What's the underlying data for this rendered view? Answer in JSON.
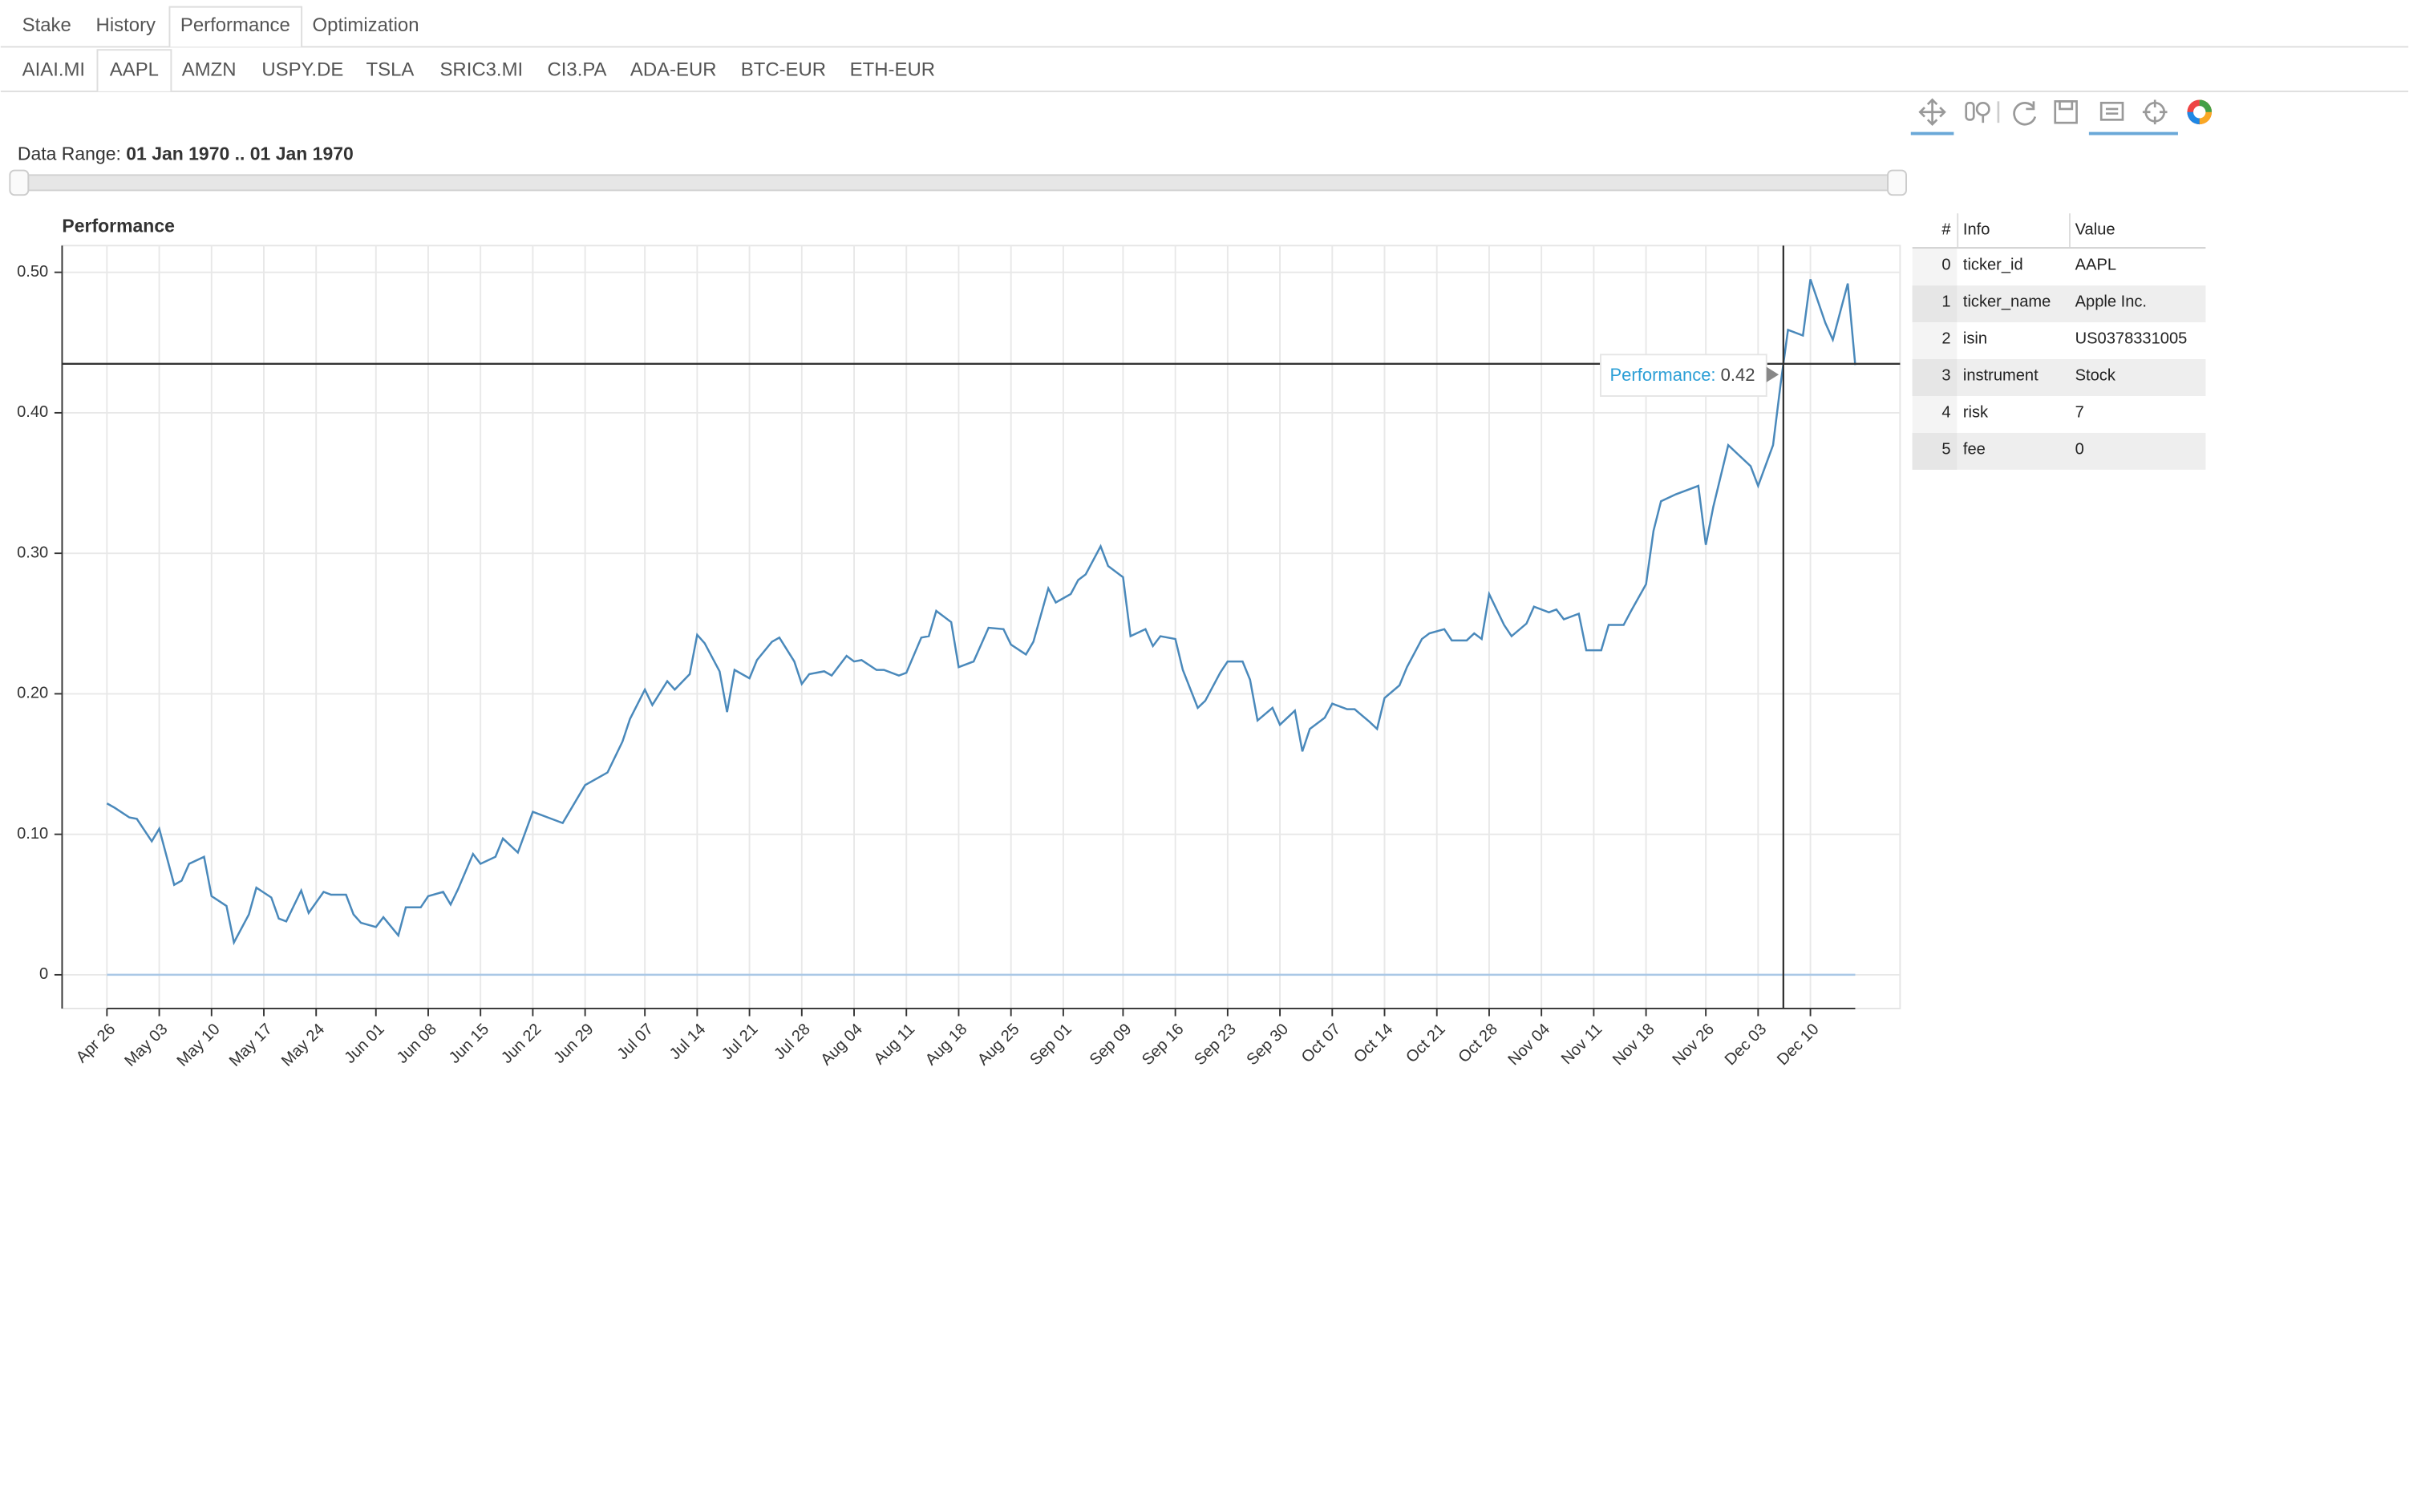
{
  "tabs": [
    "Stake",
    "History",
    "Performance",
    "Optimization"
  ],
  "active_tab": 2,
  "tickers": [
    "AIAI.MI",
    "AAPL",
    "AMZN",
    "USPY.DE",
    "TSLA",
    "SRIC3.MI",
    "CI3.PA",
    "ADA-EUR",
    "BTC-EUR",
    "ETH-EUR"
  ],
  "active_ticker": 1,
  "data_range": {
    "label": "Data Range:",
    "value": "01 Jan 1970 .. 01 Jan 1970"
  },
  "chart_data": {
    "type": "line",
    "title": "Performance",
    "xlim": [
      -6,
      240
    ],
    "xticks": [
      {
        "value": 0,
        "label": "Apr 26"
      },
      {
        "value": 7,
        "label": "May 03"
      },
      {
        "value": 14,
        "label": "May 10"
      },
      {
        "value": 21,
        "label": "May 17"
      },
      {
        "value": 28,
        "label": "May 24"
      },
      {
        "value": 36,
        "label": "Jun 01"
      },
      {
        "value": 43,
        "label": "Jun 08"
      },
      {
        "value": 50,
        "label": "Jun 15"
      },
      {
        "value": 57,
        "label": "Jun 22"
      },
      {
        "value": 64,
        "label": "Jun 29"
      },
      {
        "value": 72,
        "label": "Jul 07"
      },
      {
        "value": 79,
        "label": "Jul 14"
      },
      {
        "value": 86,
        "label": "Jul 21"
      },
      {
        "value": 93,
        "label": "Jul 28"
      },
      {
        "value": 100,
        "label": "Aug 04"
      },
      {
        "value": 107,
        "label": "Aug 11"
      },
      {
        "value": 114,
        "label": "Aug 18"
      },
      {
        "value": 121,
        "label": "Aug 25"
      },
      {
        "value": 128,
        "label": "Sep 01"
      },
      {
        "value": 136,
        "label": "Sep 09"
      },
      {
        "value": 143,
        "label": "Sep 16"
      },
      {
        "value": 150,
        "label": "Sep 23"
      },
      {
        "value": 157,
        "label": "Sep 30"
      },
      {
        "value": 164,
        "label": "Oct 07"
      },
      {
        "value": 171,
        "label": "Oct 14"
      },
      {
        "value": 178,
        "label": "Oct 21"
      },
      {
        "value": 185,
        "label": "Oct 28"
      },
      {
        "value": 192,
        "label": "Nov 04"
      },
      {
        "value": 199,
        "label": "Nov 11"
      },
      {
        "value": 206,
        "label": "Nov 18"
      },
      {
        "value": 214,
        "label": "Nov 26"
      },
      {
        "value": 221,
        "label": "Dec 03"
      },
      {
        "value": 228,
        "label": "Dec 10"
      }
    ],
    "ylim": [
      -0.024,
      0.519
    ],
    "yticks": [
      0,
      {
        "value": 0.1,
        "label": "0.10"
      },
      {
        "value": 0.2,
        "label": "0.20"
      },
      {
        "value": 0.3,
        "label": "0.30"
      },
      {
        "value": 0.4,
        "label": "0.40"
      },
      {
        "value": 0.5,
        "label": "0.50"
      }
    ],
    "grid": true,
    "series": [
      {
        "color": "#4a89bb",
        "x": [
          0,
          1,
          3,
          4,
          6,
          7,
          9,
          10,
          11,
          13,
          14,
          16,
          17,
          19,
          20,
          22,
          23,
          24,
          26,
          27,
          29,
          30,
          32,
          33,
          34,
          36,
          37,
          39,
          40,
          42,
          43,
          45,
          46,
          47,
          49,
          50,
          52,
          53,
          55,
          57,
          59,
          61,
          64,
          66,
          67,
          69,
          70,
          72,
          73,
          75,
          76,
          78,
          79,
          80,
          82,
          83,
          84,
          86,
          87,
          89,
          90,
          92,
          93,
          94,
          96,
          97,
          99,
          100,
          101,
          103,
          104,
          106,
          107,
          109,
          110,
          111,
          113,
          114,
          116,
          117,
          118,
          120,
          121,
          123,
          124,
          126,
          127,
          129,
          130,
          131,
          133,
          134,
          136,
          137,
          139,
          140,
          141,
          143,
          144,
          146,
          147,
          149,
          150,
          152,
          153,
          154,
          156,
          157,
          159,
          160,
          161,
          163,
          164,
          166,
          167,
          169,
          170,
          171,
          173,
          174,
          176,
          177,
          179,
          180,
          182,
          183,
          184,
          185,
          187,
          188,
          190,
          191,
          193,
          194,
          195,
          197,
          198,
          200,
          201,
          203,
          204,
          206,
          207,
          208,
          210,
          211,
          213,
          214,
          215,
          217,
          218,
          220,
          221,
          223,
          224,
          225,
          227,
          228,
          230,
          231,
          233,
          234
        ],
        "values": [
          0.122,
          0.119,
          0.112,
          0.111,
          0.095,
          0.104,
          0.064,
          0.067,
          0.079,
          0.084,
          0.056,
          0.049,
          0.023,
          0.043,
          0.062,
          0.055,
          0.04,
          0.038,
          0.06,
          0.044,
          0.059,
          0.057,
          0.057,
          0.043,
          0.037,
          0.034,
          0.041,
          0.028,
          0.048,
          0.048,
          0.056,
          0.059,
          0.05,
          0.061,
          0.086,
          0.079,
          0.084,
          0.097,
          0.087,
          0.116,
          0.112,
          0.108,
          0.135,
          0.141,
          0.144,
          0.166,
          0.182,
          0.203,
          0.192,
          0.209,
          0.203,
          0.214,
          0.242,
          0.236,
          0.216,
          0.187,
          0.217,
          0.211,
          0.224,
          0.237,
          0.24,
          0.223,
          0.207,
          0.214,
          0.216,
          0.213,
          0.227,
          0.223,
          0.224,
          0.217,
          0.217,
          0.213,
          0.215,
          0.24,
          0.241,
          0.259,
          0.251,
          0.219,
          0.223,
          0.235,
          0.247,
          0.246,
          0.235,
          0.228,
          0.237,
          0.275,
          0.265,
          0.271,
          0.281,
          0.285,
          0.305,
          0.291,
          0.283,
          0.241,
          0.246,
          0.234,
          0.241,
          0.239,
          0.217,
          0.19,
          0.195,
          0.215,
          0.223,
          0.223,
          0.21,
          0.181,
          0.19,
          0.178,
          0.188,
          0.159,
          0.175,
          0.183,
          0.193,
          0.189,
          0.189,
          0.18,
          0.175,
          0.197,
          0.206,
          0.219,
          0.239,
          0.243,
          0.246,
          0.238,
          0.238,
          0.243,
          0.239,
          0.271,
          0.249,
          0.241,
          0.25,
          0.262,
          0.258,
          0.26,
          0.253,
          0.257,
          0.231,
          0.231,
          0.249,
          0.249,
          0.259,
          0.278,
          0.316,
          0.337,
          0.342,
          0.344,
          0.348,
          0.306,
          0.333,
          0.377,
          0.372,
          0.362,
          0.348,
          0.377,
          0.42,
          0.459,
          0.455,
          0.495,
          0.464,
          0.452,
          0.492,
          0.434
        ]
      },
      {
        "color": "#aac8e6",
        "x": [
          0,
          234
        ],
        "values": [
          0,
          0
        ]
      }
    ],
    "tooltip": {
      "label": "Performance:",
      "value": "0.42"
    }
  },
  "table": {
    "columns": [
      "#",
      "Info",
      "Value"
    ],
    "rows": [
      [
        0,
        "ticker_id",
        "AAPL"
      ],
      [
        1,
        "ticker_name",
        "Apple Inc."
      ],
      [
        2,
        "isin",
        "US0378331005"
      ],
      [
        3,
        "instrument",
        "Stock"
      ],
      [
        4,
        "risk",
        7
      ],
      [
        5,
        "fee",
        0
      ]
    ]
  }
}
